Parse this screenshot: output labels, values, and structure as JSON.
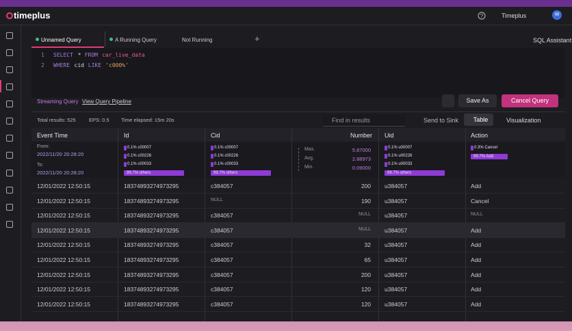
{
  "header": {
    "logo": "timeplus",
    "workspace": "Timeplus",
    "avatar": "W"
  },
  "tabs": [
    "Unnamed Query",
    "A Running Query",
    "Not Running"
  ],
  "sql_assistant": "SQL Assistant",
  "editor": {
    "line_numbers": [
      "1",
      "2"
    ],
    "lines": [
      [
        "SELECT",
        "*",
        "FROM",
        "car_live_data"
      ],
      [
        "WHERE",
        "cid",
        "LIKE",
        "'c000%'"
      ]
    ]
  },
  "links": [
    "Streaming Query",
    "View Query Pipeline"
  ],
  "buttons": {
    "save": "Save As",
    "cancel": "Cancel Query"
  },
  "stats": [
    "Total results: 525",
    "EPS: 0.5",
    "Time elapsed: 15m 20s"
  ],
  "toolbar": {
    "search": "Find in results",
    "sink": "Send to Sink",
    "table": "Table",
    "visualization": "Visualization"
  },
  "table": {
    "columns": [
      "Event Time",
      "Id",
      "Cid",
      "Number",
      "Uid",
      "Action"
    ],
    "summary": {
      "event_time": {
        "from_label": "From:",
        "from": "2022/11/20 20:28:20",
        "to_label": "To:",
        "to": "2022/11/20 20:28:20"
      },
      "id": {
        "top": [
          "0.1% c00007",
          "0.1% c00226",
          "0.1% c00033"
        ],
        "others": "99.7% others"
      },
      "cid": {
        "top": [
          "0.1% c00007",
          "0.1% c00226",
          "0.1% c00033"
        ],
        "others": "99.7% others"
      },
      "number": [
        [
          "Max.",
          "5.87000"
        ],
        [
          "Avg.",
          "2.88973"
        ],
        [
          "Min.",
          "0.09000"
        ]
      ],
      "uid": {
        "top": [
          "0.1% u00007",
          "0.1% u00226",
          "0.1% u00033"
        ],
        "others": "99.7% others"
      },
      "action": {
        "top": [
          "0.3% Cancel"
        ],
        "others": "99.7% Add"
      }
    },
    "rows": [
      [
        "12/01/2022 12:50:15",
        "18374893274973295",
        "c384057",
        "200",
        "u384057",
        "Add"
      ],
      [
        "12/01/2022 12:50:15",
        "18374893274973295",
        "NULL",
        "190",
        "u384057",
        "Cancel"
      ],
      [
        "12/01/2022 12:50:15",
        "18374893274973295",
        "c384057",
        "NULL",
        "u384057",
        "NULL"
      ],
      [
        "12/01/2022 12:50:15",
        "18374893274973295",
        "c384057",
        "NULL",
        "u384057",
        "Add"
      ],
      [
        "12/01/2022 12:50:15",
        "18374893274973295",
        "c384057",
        "32",
        "u384057",
        "Add"
      ],
      [
        "12/01/2022 12:50:15",
        "18374893274973295",
        "c384057",
        "65",
        "u384057",
        "Add"
      ],
      [
        "12/01/2022 12:50:15",
        "18374893274973295",
        "c384057",
        "200",
        "u384057",
        "Add"
      ],
      [
        "12/01/2022 12:50:15",
        "18374893274973295",
        "c384057",
        "120",
        "u384057",
        "Add"
      ],
      [
        "12/01/2022 12:50:15",
        "18374893274973295",
        "c384057",
        "120",
        "u384057",
        "Add"
      ]
    ]
  }
}
